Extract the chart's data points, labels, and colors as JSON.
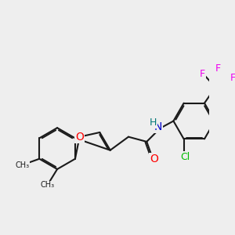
{
  "background_color": "#eeeeee",
  "bond_color": "#1a1a1a",
  "bond_width": 1.5,
  "atom_colors": {
    "O": "#ff0000",
    "N": "#0000cc",
    "Cl": "#00bb00",
    "F": "#ee00ee",
    "H": "#007777",
    "C": "#1a1a1a"
  },
  "font_size_atom": 9
}
